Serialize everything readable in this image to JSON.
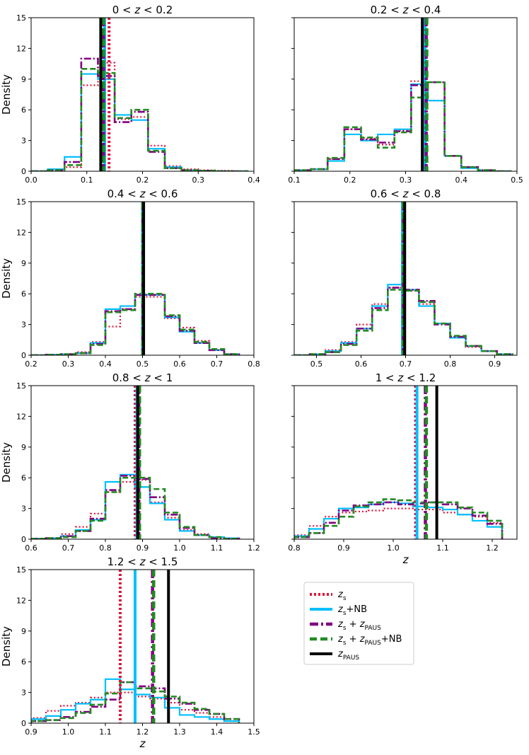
{
  "chart_data": [
    {
      "type": "histogram",
      "title": "0 < z < 0.2",
      "xlabel": "",
      "ylabel": "Density",
      "xlim": [
        0.0,
        0.4
      ],
      "ylim": [
        0,
        15
      ],
      "xticks": [
        "0.0",
        "0.1",
        "0.2",
        "0.3",
        "0.4"
      ],
      "yticks": [
        "0",
        "3",
        "6",
        "9",
        "12",
        "15"
      ],
      "bin_edges": [
        0.0,
        0.03,
        0.06,
        0.09,
        0.12,
        0.15,
        0.18,
        0.21,
        0.24,
        0.27,
        0.3,
        0.33,
        0.36,
        0.39
      ],
      "series": [
        {
          "name": "z_s",
          "values": [
            0,
            0.1,
            0.4,
            8.4,
            10.6,
            5.1,
            5.3,
            2.5,
            0.5,
            0.2,
            0.1,
            0.05,
            0
          ]
        },
        {
          "name": "z_s+NB",
          "values": [
            0,
            0.2,
            1.4,
            9.5,
            9.0,
            5.5,
            5.0,
            2.2,
            0.4,
            0.1,
            0.05,
            0,
            0
          ]
        },
        {
          "name": "z_s + z_PAUS",
          "values": [
            0,
            0.1,
            0.9,
            11.0,
            9.3,
            4.8,
            5.8,
            1.9,
            0.3,
            0.1,
            0.05,
            0,
            0
          ]
        },
        {
          "name": "z_s + z_PAUS+NB",
          "values": [
            0,
            0.1,
            0.6,
            10.0,
            9.6,
            5.2,
            6.0,
            2.0,
            0.3,
            0.1,
            0.05,
            0,
            0
          ]
        }
      ],
      "vlines": {
        "z_s": 0.14,
        "z_s+NB": 0.132,
        "z_s + z_PAUS": 0.13,
        "z_s + z_PAUS+NB": 0.13,
        "z_PAUS": 0.125
      }
    },
    {
      "type": "histogram",
      "title": "0.2 < z < 0.4",
      "xlabel": "",
      "ylabel": "",
      "xlim": [
        0.1,
        0.5
      ],
      "ylim": [
        0,
        15
      ],
      "xticks": [
        "0.1",
        "0.2",
        "0.3",
        "0.4",
        "0.5"
      ],
      "yticks": [],
      "bin_edges": [
        0.1,
        0.13,
        0.16,
        0.19,
        0.22,
        0.25,
        0.28,
        0.31,
        0.34,
        0.37,
        0.4,
        0.43,
        0.46,
        0.49
      ],
      "series": [
        {
          "name": "z_s",
          "values": [
            0.1,
            0.2,
            1.2,
            4.1,
            3.2,
            2.6,
            4.0,
            8.8,
            6.9,
            1.5,
            0.4,
            0.1,
            0
          ]
        },
        {
          "name": "z_s+NB",
          "values": [
            0.1,
            0.2,
            1.0,
            3.6,
            3.0,
            3.6,
            4.1,
            8.5,
            6.9,
            1.5,
            0.3,
            0.1,
            0
          ]
        },
        {
          "name": "z_s + z_PAUS",
          "values": [
            0.1,
            0.2,
            1.2,
            4.1,
            3.1,
            2.8,
            3.9,
            8.4,
            8.7,
            1.5,
            0.4,
            0.1,
            0
          ]
        },
        {
          "name": "z_s + z_PAUS+NB",
          "values": [
            0.1,
            0.2,
            1.3,
            4.3,
            3.3,
            2.3,
            3.8,
            7.2,
            8.7,
            1.5,
            0.4,
            0.1,
            0
          ]
        }
      ],
      "vlines": {
        "z_s": 0.335,
        "z_s+NB": 0.335,
        "z_s + z_PAUS": 0.337,
        "z_s + z_PAUS+NB": 0.338,
        "z_PAUS": 0.33
      }
    },
    {
      "type": "histogram",
      "title": "0.4 < z < 0.6",
      "xlabel": "",
      "ylabel": "Density",
      "xlim": [
        0.2,
        0.8
      ],
      "ylim": [
        0,
        15
      ],
      "xticks": [
        "0.2",
        "0.3",
        "0.4",
        "0.5",
        "0.6",
        "0.7",
        "0.8"
      ],
      "yticks": [
        "0",
        "3",
        "6",
        "9",
        "12",
        "15"
      ],
      "bin_edges": [
        0.2,
        0.24,
        0.28,
        0.32,
        0.36,
        0.4,
        0.44,
        0.48,
        0.52,
        0.56,
        0.6,
        0.64,
        0.68,
        0.72,
        0.76
      ],
      "series": [
        {
          "name": "z_s",
          "values": [
            0,
            0.05,
            0.1,
            0.3,
            1.3,
            2.8,
            4.5,
            5.7,
            5.7,
            3.6,
            2.7,
            1.4,
            0.5,
            0.1
          ]
        },
        {
          "name": "z_s+NB",
          "values": [
            0,
            0.05,
            0.1,
            0.2,
            1.2,
            4.5,
            4.8,
            5.9,
            5.9,
            3.7,
            2.3,
            1.2,
            0.5,
            0.1
          ]
        },
        {
          "name": "z_s + z_PAUS",
          "values": [
            0,
            0.05,
            0.1,
            0.2,
            1.1,
            4.3,
            4.5,
            5.9,
            5.9,
            3.8,
            2.4,
            1.2,
            0.5,
            0.1
          ]
        },
        {
          "name": "z_s + z_PAUS+NB",
          "values": [
            0,
            0.05,
            0.1,
            0.2,
            1.0,
            4.2,
            4.4,
            6.0,
            6.0,
            3.9,
            2.5,
            1.3,
            0.6,
            0.1
          ]
        }
      ],
      "vlines": {
        "z_s": 0.5,
        "z_s+NB": 0.5,
        "z_s + z_PAUS": 0.501,
        "z_s + z_PAUS+NB": 0.501,
        "z_PAUS": 0.503
      }
    },
    {
      "type": "histogram",
      "title": "0.6 < z < 0.8",
      "xlabel": "",
      "ylabel": "",
      "xlim": [
        0.45,
        0.95
      ],
      "ylim": [
        0,
        15
      ],
      "xticks": [
        "0.5",
        "0.6",
        "0.7",
        "0.8",
        "0.9"
      ],
      "yticks": [],
      "bin_edges": [
        0.45,
        0.485,
        0.52,
        0.555,
        0.59,
        0.625,
        0.66,
        0.695,
        0.73,
        0.765,
        0.8,
        0.835,
        0.87,
        0.905,
        0.94
      ],
      "series": [
        {
          "name": "z_s",
          "values": [
            0,
            0.1,
            0.5,
            1.3,
            3.0,
            5.0,
            6.6,
            6.3,
            5.0,
            3.1,
            1.8,
            0.8,
            0.4,
            0.1
          ]
        },
        {
          "name": "z_s+NB",
          "values": [
            0,
            0.1,
            0.4,
            1.2,
            2.6,
            4.8,
            6.9,
            6.4,
            4.8,
            3.1,
            1.7,
            0.9,
            0.4,
            0.1
          ]
        },
        {
          "name": "z_s + z_PAUS",
          "values": [
            0,
            0.1,
            0.3,
            1.1,
            2.6,
            4.6,
            6.6,
            6.4,
            5.3,
            3.0,
            1.8,
            0.9,
            0.4,
            0.1
          ]
        },
        {
          "name": "z_s + z_PAUS+NB",
          "values": [
            0,
            0.1,
            0.3,
            1.0,
            2.4,
            4.4,
            6.4,
            6.3,
            5.2,
            3.1,
            1.9,
            0.9,
            0.4,
            0.1
          ]
        }
      ],
      "vlines": {
        "z_s": 0.693,
        "z_s+NB": 0.693,
        "z_s + z_PAUS": 0.695,
        "z_s + z_PAUS+NB": 0.695,
        "z_PAUS": 0.698
      }
    },
    {
      "type": "histogram",
      "title": "0.8 < z < 1",
      "xlabel": "",
      "ylabel": "Density",
      "xlim": [
        0.6,
        1.2
      ],
      "ylim": [
        0,
        15
      ],
      "xticks": [
        "0.6",
        "0.7",
        "0.8",
        "0.9",
        "1.0",
        "1.1",
        "1.2"
      ],
      "yticks": [
        "0",
        "3",
        "6",
        "9",
        "12",
        "15"
      ],
      "bin_edges": [
        0.6,
        0.64,
        0.68,
        0.72,
        0.76,
        0.8,
        0.84,
        0.88,
        0.92,
        0.96,
        1.0,
        1.04,
        1.08,
        1.12,
        1.16
      ],
      "series": [
        {
          "name": "z_s",
          "values": [
            0.05,
            0.1,
            0.5,
            1.2,
            2.5,
            4.6,
            5.6,
            5.8,
            3.6,
            2.1,
            0.9,
            0.5,
            0.2,
            0.1
          ]
        },
        {
          "name": "z_s+NB",
          "values": [
            0.05,
            0.1,
            0.3,
            0.9,
            1.9,
            5.6,
            6.3,
            5.1,
            3.5,
            1.9,
            0.8,
            0.4,
            0.2,
            0.1
          ]
        },
        {
          "name": "z_s + z_PAUS",
          "values": [
            0.05,
            0.1,
            0.3,
            0.8,
            2.0,
            4.8,
            6.2,
            5.9,
            4.1,
            2.4,
            1.1,
            0.4,
            0.1,
            0.05
          ]
        },
        {
          "name": "z_s + z_PAUS+NB",
          "values": [
            0.05,
            0.1,
            0.2,
            0.8,
            1.8,
            4.6,
            6.0,
            6.0,
            4.9,
            2.6,
            1.2,
            0.4,
            0.2,
            0.05
          ]
        }
      ],
      "vlines": {
        "z_s": 0.88,
        "z_s+NB": 0.885,
        "z_s + z_PAUS": 0.89,
        "z_s + z_PAUS+NB": 0.892,
        "z_PAUS": 0.887
      }
    },
    {
      "type": "histogram",
      "title": "1 < z < 1.2",
      "xlabel": "z",
      "ylabel": "",
      "xlim": [
        0.8,
        1.25
      ],
      "ylim": [
        0,
        15
      ],
      "xticks": [
        "0.8",
        "0.9",
        "1.0",
        "1.1",
        "1.2"
      ],
      "yticks": [],
      "bin_edges": [
        0.8,
        0.83,
        0.86,
        0.89,
        0.92,
        0.95,
        0.98,
        1.01,
        1.04,
        1.07,
        1.1,
        1.13,
        1.16,
        1.19,
        1.22
      ],
      "series": [
        {
          "name": "z_s",
          "values": [
            0.4,
            1.3,
            2.2,
            2.6,
            2.7,
            2.8,
            3.0,
            3.0,
            2.9,
            2.9,
            2.6,
            2.4,
            2.2,
            1.6
          ]
        },
        {
          "name": "z_s+NB",
          "values": [
            0.3,
            1.0,
            2.0,
            3.0,
            3.1,
            3.4,
            3.6,
            3.5,
            3.2,
            3.1,
            2.9,
            2.4,
            1.8,
            1.2
          ]
        },
        {
          "name": "z_s + z_PAUS",
          "values": [
            0.2,
            0.6,
            1.6,
            2.8,
            3.3,
            3.4,
            3.6,
            3.4,
            3.5,
            3.6,
            3.4,
            3.0,
            2.3,
            1.5
          ]
        },
        {
          "name": "z_s + z_PAUS+NB",
          "values": [
            0.2,
            0.6,
            1.3,
            2.2,
            3.2,
            3.6,
            3.9,
            3.8,
            3.6,
            3.6,
            3.6,
            3.1,
            2.6,
            1.8
          ]
        }
      ],
      "vlines": {
        "z_s": 1.045,
        "z_s+NB": 1.048,
        "z_s + z_PAUS": 1.065,
        "z_s + z_PAUS+NB": 1.067,
        "z_PAUS": 1.088
      }
    },
    {
      "type": "histogram",
      "title": "1.2 < z < 1.5",
      "xlabel": "z",
      "ylabel": "Density",
      "xlim": [
        0.9,
        1.5
      ],
      "ylim": [
        0,
        15
      ],
      "xticks": [
        "0.9",
        "1.0",
        "1.1",
        "1.2",
        "1.3",
        "1.4",
        "1.5"
      ],
      "yticks": [
        "0",
        "3",
        "6",
        "9",
        "12",
        "15"
      ],
      "bin_edges": [
        0.9,
        0.94,
        0.98,
        1.02,
        1.06,
        1.1,
        1.14,
        1.18,
        1.22,
        1.26,
        1.3,
        1.34,
        1.38,
        1.42,
        1.46
      ],
      "series": [
        {
          "name": "z_s",
          "values": [
            0.5,
            1.2,
            1.7,
            2.0,
            2.5,
            3.0,
            3.0,
            2.6,
            2.4,
            2.0,
            1.3,
            1.0,
            0.6,
            0.2
          ]
        },
        {
          "name": "z_s+NB",
          "values": [
            0.4,
            0.7,
            1.3,
            1.9,
            2.3,
            4.3,
            3.3,
            2.8,
            2.5,
            1.5,
            0.8,
            0.6,
            0.4,
            0.2
          ]
        },
        {
          "name": "z_s + z_PAUS",
          "values": [
            0.2,
            0.3,
            0.6,
            1.1,
            1.6,
            2.3,
            4.0,
            3.6,
            3.4,
            2.4,
            1.9,
            1.3,
            0.9,
            0.4
          ]
        },
        {
          "name": "z_s + z_PAUS+NB",
          "values": [
            0.2,
            0.3,
            0.5,
            1.0,
            1.8,
            2.9,
            4.0,
            3.4,
            3.1,
            2.6,
            2.0,
            1.4,
            0.9,
            0.4
          ]
        }
      ],
      "vlines": {
        "z_s": 1.14,
        "z_s+NB": 1.18,
        "z_s + z_PAUS": 1.227,
        "z_s + z_PAUS+NB": 1.23,
        "z_PAUS": 1.27
      }
    }
  ],
  "legend": {
    "placement": "bottom-right",
    "entries": [
      {
        "key": "z_s",
        "label": "zs",
        "color": "#dc143c",
        "dash": "dotted"
      },
      {
        "key": "z_s+NB",
        "label": "zs+NB",
        "color": "#00bfff",
        "dash": "solid"
      },
      {
        "key": "z_s + z_PAUS",
        "label": "zs + zPAUS",
        "color": "#800080",
        "dash": "dashdot"
      },
      {
        "key": "z_s + z_PAUS+NB",
        "label": "zs + zPAUS+NB",
        "color": "#228b22",
        "dash": "dashed"
      },
      {
        "key": "z_PAUS",
        "label": "zPAUS",
        "color": "#000000",
        "dash": "solid"
      }
    ]
  },
  "colors": {
    "z_s": "#dc143c",
    "z_s+NB": "#00bfff",
    "z_s + z_PAUS": "#800080",
    "z_s + z_PAUS+NB": "#228b22",
    "z_PAUS": "#000000"
  }
}
